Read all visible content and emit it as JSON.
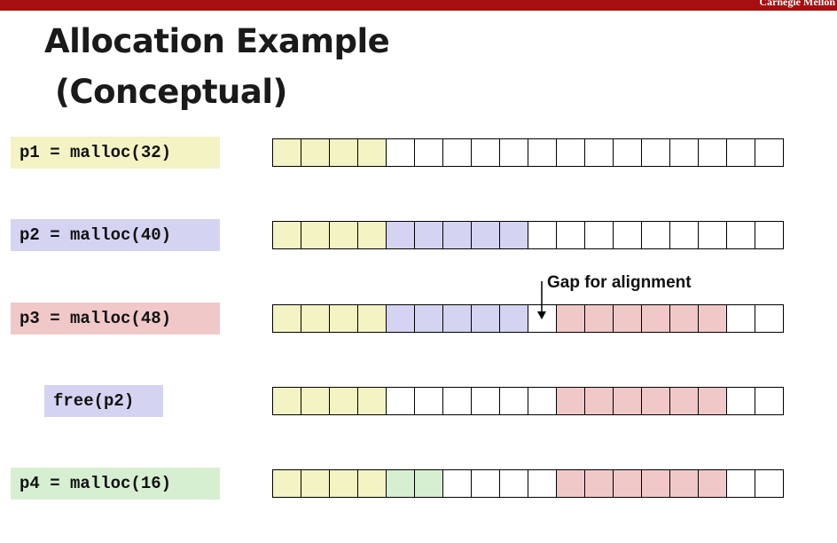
{
  "header": {
    "brand": "Carnegie Mellon"
  },
  "title": {
    "line1": "Allocation Example",
    "line2": "(Conceptual)"
  },
  "annotation": {
    "gap_label": "Gap for alignment"
  },
  "colors": {
    "empty": "#ffffff",
    "yellow": "#f3f3c4",
    "blue": "#d4d4f2",
    "red": "#f1c8c8",
    "green": "#d7efd1"
  },
  "rows": [
    {
      "label": "p1 = malloc(32)",
      "label_color": "yellow",
      "cells": [
        "yellow",
        "yellow",
        "yellow",
        "yellow",
        "empty",
        "empty",
        "empty",
        "empty",
        "empty",
        "empty",
        "empty",
        "empty",
        "empty",
        "empty",
        "empty",
        "empty",
        "empty",
        "empty"
      ]
    },
    {
      "label": "p2 = malloc(40)",
      "label_color": "blue",
      "cells": [
        "yellow",
        "yellow",
        "yellow",
        "yellow",
        "blue",
        "blue",
        "blue",
        "blue",
        "blue",
        "empty",
        "empty",
        "empty",
        "empty",
        "empty",
        "empty",
        "empty",
        "empty",
        "empty"
      ]
    },
    {
      "label": "p3 = malloc(48)",
      "label_color": "red",
      "cells": [
        "yellow",
        "yellow",
        "yellow",
        "yellow",
        "blue",
        "blue",
        "blue",
        "blue",
        "blue",
        "empty",
        "red",
        "red",
        "red",
        "red",
        "red",
        "red",
        "empty",
        "empty"
      ]
    },
    {
      "label": "free(p2)",
      "label_color": "blue",
      "cells": [
        "yellow",
        "yellow",
        "yellow",
        "yellow",
        "empty",
        "empty",
        "empty",
        "empty",
        "empty",
        "empty",
        "red",
        "red",
        "red",
        "red",
        "red",
        "red",
        "empty",
        "empty"
      ]
    },
    {
      "label": "p4 = malloc(16)",
      "label_color": "green",
      "cells": [
        "yellow",
        "yellow",
        "yellow",
        "yellow",
        "green",
        "green",
        "empty",
        "empty",
        "empty",
        "empty",
        "red",
        "red",
        "red",
        "red",
        "red",
        "red",
        "empty",
        "empty"
      ]
    }
  ]
}
